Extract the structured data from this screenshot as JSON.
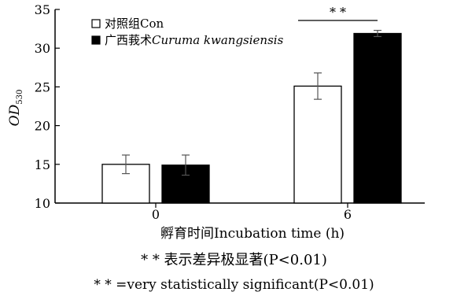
{
  "chart_data": {
    "type": "bar",
    "categories": [
      "0",
      "6"
    ],
    "series": [
      {
        "name": "对照组Con",
        "values": [
          15.0,
          25.1
        ],
        "errors": [
          1.2,
          1.7
        ],
        "color": "#ffffff"
      },
      {
        "name_prefix": "广西莪术",
        "name_italic": "Curuma kwangsiensis",
        "values": [
          14.9,
          31.9
        ],
        "errors": [
          1.3,
          0.4
        ],
        "color": "#000000"
      }
    ],
    "ylim": [
      10,
      35
    ],
    "yticks": [
      "10",
      "15",
      "20",
      "25",
      "30",
      "35"
    ],
    "ylabel_main": "OD",
    "ylabel_sub": "530",
    "xlabel": "孵育时间Incubation time (h)",
    "legend_position": "top-left",
    "annotation": "* *",
    "caption_cn": "* * 表示差异极显著(P<0.01)",
    "caption_en": "* * =very statistically significant(P<0.01)"
  }
}
